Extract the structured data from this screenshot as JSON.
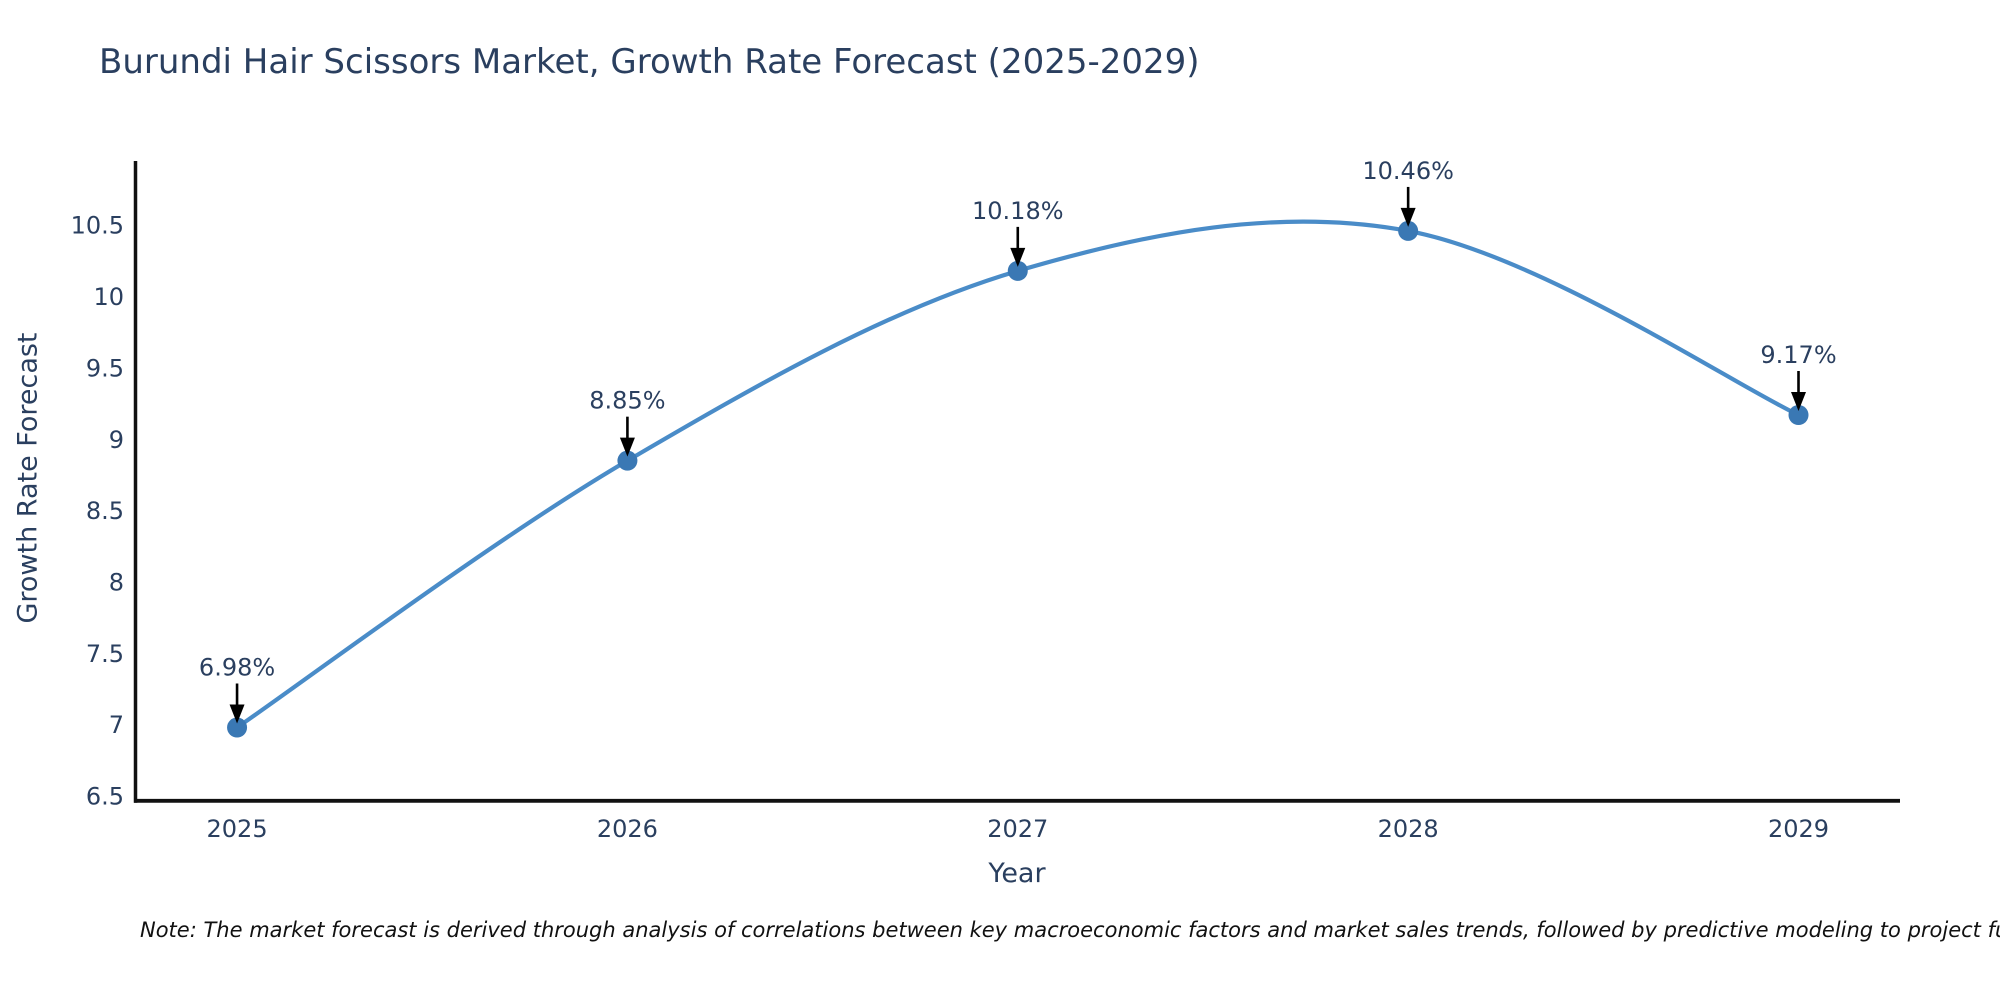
{
  "title": "Burundi Hair Scissors Market, Growth Rate Forecast (2025-2029)",
  "note": "Note: The market forecast is derived through analysis of correlations between key macroeconomic factors and market sales trends, followed by predictive modeling to project future sal",
  "chart_data": {
    "type": "line",
    "title": "Burundi Hair Scissors Market, Growth Rate Forecast (2025-2029)",
    "x": [
      2025,
      2026,
      2027,
      2028,
      2029
    ],
    "y": [
      6.98,
      8.85,
      10.18,
      10.46,
      9.17
    ],
    "point_labels": [
      "6.98%",
      "8.85%",
      "10.18%",
      "10.46%",
      "9.17%"
    ],
    "xlabel": "Year",
    "ylabel": "Growth Rate Forecast",
    "x_tick_labels": [
      "2025",
      "2026",
      "2027",
      "2028",
      "2029"
    ],
    "y_ticks": [
      {
        "v": 6.5,
        "label": "6.5"
      },
      {
        "v": 7,
        "label": "7"
      },
      {
        "v": 7.5,
        "label": "7.5"
      },
      {
        "v": 8,
        "label": "8"
      },
      {
        "v": 8.5,
        "label": "8.5"
      },
      {
        "v": 9,
        "label": "9"
      },
      {
        "v": 9.5,
        "label": "9.5"
      },
      {
        "v": 10,
        "label": "10"
      },
      {
        "v": 10.5,
        "label": "10.5"
      }
    ],
    "xlim": [
      2024.736,
      2029.26
    ],
    "ylim": [
      6.465,
      10.95
    ],
    "line_shape": "spline",
    "grid": false,
    "legend_position": "none",
    "colors": {
      "line": "#4a8cc8",
      "marker": "#3a78b4",
      "axis": "#111111",
      "tick_text": "#2a3f5f",
      "annotation_text": "#2a3f5f",
      "arrow": "#000000"
    }
  }
}
